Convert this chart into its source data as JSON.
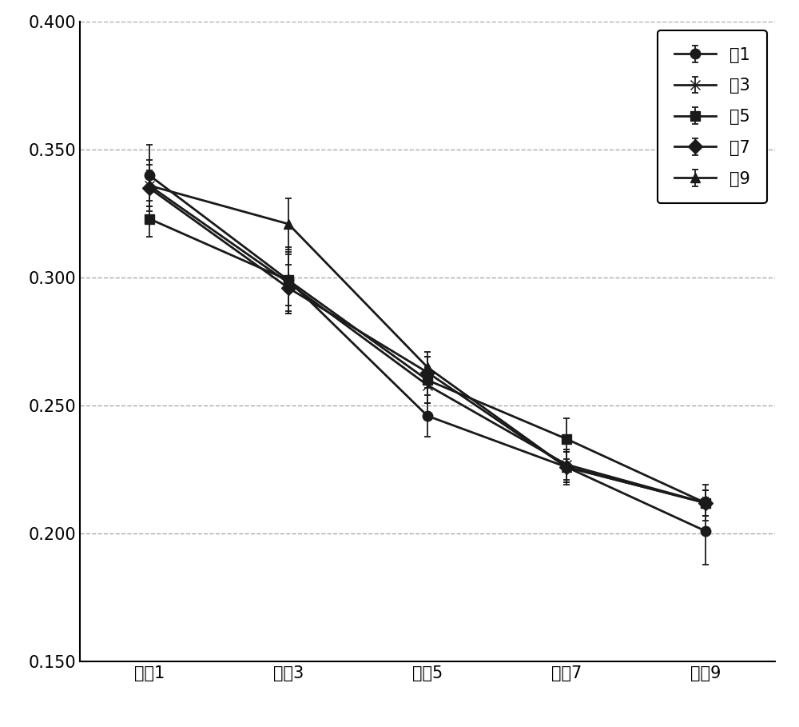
{
  "x_labels": [
    "台陣1",
    "台陣3",
    "台陣5",
    "台陣7",
    "台陣9"
  ],
  "x_positions": [
    1,
    3,
    5,
    7,
    9
  ],
  "series": [
    {
      "label": "西1",
      "marker": "o",
      "values": [
        0.34,
        0.299,
        0.246,
        0.226,
        0.201
      ],
      "errors": [
        0.012,
        0.013,
        0.008,
        0.007,
        0.013
      ]
    },
    {
      "label": "西3",
      "marker": "x",
      "values": [
        0.336,
        0.298,
        0.258,
        0.227,
        0.212
      ],
      "errors": [
        0.008,
        0.012,
        0.007,
        0.006,
        0.005
      ]
    },
    {
      "label": "西5",
      "marker": "s",
      "values": [
        0.323,
        0.299,
        0.26,
        0.237,
        0.212
      ],
      "errors": [
        0.007,
        0.01,
        0.009,
        0.008,
        0.007
      ]
    },
    {
      "label": "西7",
      "marker": "D",
      "values": [
        0.335,
        0.296,
        0.263,
        0.226,
        0.212
      ],
      "errors": [
        0.007,
        0.009,
        0.006,
        0.006,
        0.005
      ]
    },
    {
      "label": "西9",
      "marker": "^",
      "values": [
        0.336,
        0.321,
        0.265,
        0.226,
        0.212
      ],
      "errors": [
        0.01,
        0.01,
        0.006,
        0.006,
        0.005
      ]
    }
  ],
  "ylim": [
    0.15,
    0.4
  ],
  "yticks": [
    0.15,
    0.2,
    0.25,
    0.3,
    0.35,
    0.4
  ],
  "line_color": "#1a1a1a",
  "marker_color": "#1a1a1a",
  "background_color": "#ffffff",
  "grid_color": "#aaaaaa",
  "legend_fontsize": 15,
  "tick_fontsize": 15,
  "marker_size": 9,
  "line_width": 2.0
}
